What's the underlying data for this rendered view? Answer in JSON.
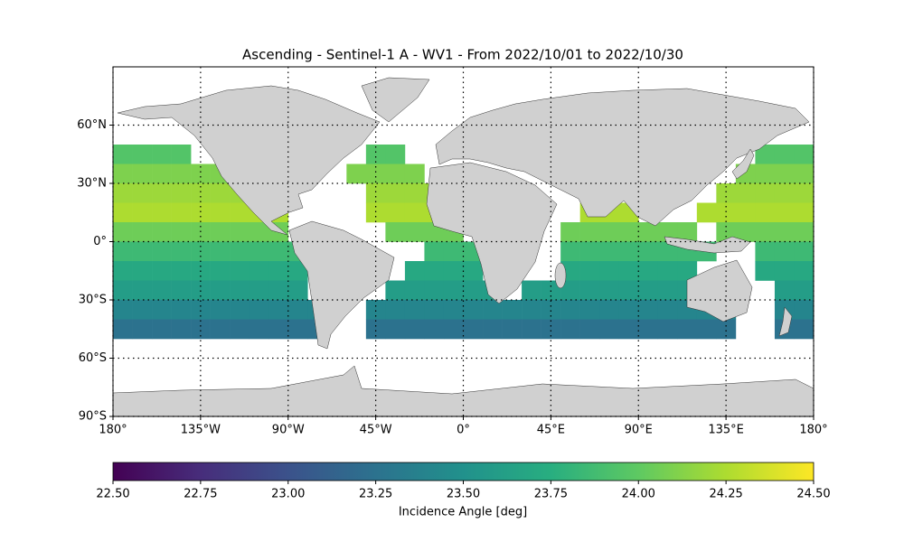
{
  "chart_data": {
    "type": "map",
    "title": "Ascending - Sentinel-1 A - WV1 - From 2022/10/01 to 2022/10/30",
    "xlim": [
      -180,
      180
    ],
    "ylim": [
      -90,
      90
    ],
    "xticks": [
      {
        "value": -180,
        "label": "180°"
      },
      {
        "value": -135,
        "label": "135°W"
      },
      {
        "value": -90,
        "label": "90°W"
      },
      {
        "value": -45,
        "label": "45°W"
      },
      {
        "value": 0,
        "label": "0°"
      },
      {
        "value": 45,
        "label": "45°E"
      },
      {
        "value": 90,
        "label": "90°E"
      },
      {
        "value": 135,
        "label": "135°E"
      },
      {
        "value": 180,
        "label": "180°"
      }
    ],
    "yticks": [
      {
        "value": -90,
        "label": "90°S"
      },
      {
        "value": -60,
        "label": "60°S"
      },
      {
        "value": -30,
        "label": "30°S"
      },
      {
        "value": 0,
        "label": "0°"
      },
      {
        "value": 30,
        "label": "30°N"
      },
      {
        "value": 60,
        "label": "60°N"
      }
    ],
    "grid": true,
    "cell_size": 10,
    "lats": [
      45,
      35,
      25,
      15,
      5,
      -5,
      -15,
      -25,
      -35,
      -45
    ],
    "lons": [
      -175,
      -165,
      -155,
      -145,
      -135,
      -125,
      -115,
      -105,
      -95,
      -85,
      -75,
      -65,
      -55,
      -45,
      -35,
      -25,
      -15,
      -5,
      5,
      15,
      25,
      35,
      45,
      55,
      65,
      75,
      85,
      95,
      105,
      115,
      125,
      135,
      145,
      155,
      165,
      175
    ],
    "values": [
      [
        23.95,
        23.95,
        23.95,
        23.95,
        null,
        null,
        null,
        null,
        null,
        null,
        null,
        null,
        null,
        23.95,
        23.95,
        null,
        null,
        null,
        null,
        null,
        null,
        null,
        null,
        null,
        null,
        null,
        null,
        null,
        null,
        null,
        null,
        null,
        null,
        23.95,
        23.95,
        23.95
      ],
      [
        24.1,
        24.1,
        24.1,
        24.1,
        24.1,
        24.1,
        null,
        null,
        null,
        null,
        null,
        null,
        24.1,
        24.1,
        24.1,
        24.1,
        null,
        null,
        null,
        null,
        null,
        null,
        null,
        null,
        null,
        null,
        null,
        null,
        null,
        null,
        null,
        null,
        24.1,
        24.1,
        24.1,
        24.1
      ],
      [
        24.2,
        24.2,
        24.2,
        24.2,
        24.2,
        24.2,
        24.2,
        null,
        null,
        null,
        null,
        null,
        null,
        24.2,
        24.2,
        24.2,
        24.2,
        null,
        null,
        null,
        null,
        null,
        null,
        null,
        null,
        null,
        null,
        null,
        null,
        null,
        null,
        24.2,
        24.2,
        24.2,
        24.2,
        24.2
      ],
      [
        24.25,
        24.25,
        24.25,
        24.25,
        24.25,
        24.25,
        24.25,
        24.25,
        24.25,
        null,
        null,
        null,
        null,
        24.25,
        24.25,
        24.25,
        24.25,
        null,
        null,
        null,
        null,
        null,
        null,
        null,
        24.25,
        24.25,
        24.25,
        null,
        null,
        null,
        24.25,
        24.25,
        24.25,
        24.25,
        24.25,
        24.25
      ],
      [
        24.05,
        24.05,
        24.05,
        24.05,
        24.05,
        24.05,
        24.05,
        24.05,
        24.05,
        null,
        null,
        null,
        null,
        null,
        24.05,
        24.05,
        24.05,
        24.05,
        null,
        null,
        null,
        null,
        null,
        24.05,
        24.05,
        24.05,
        24.05,
        24.05,
        24.05,
        24.05,
        null,
        24.05,
        24.05,
        24.05,
        24.05,
        24.05
      ],
      [
        23.85,
        23.85,
        23.85,
        23.85,
        23.85,
        23.85,
        23.85,
        23.85,
        23.85,
        23.85,
        null,
        null,
        null,
        null,
        null,
        null,
        23.85,
        23.85,
        23.85,
        null,
        null,
        null,
        null,
        23.85,
        23.85,
        23.85,
        23.85,
        23.85,
        23.85,
        23.85,
        23.85,
        null,
        null,
        23.85,
        23.85,
        23.85
      ],
      [
        23.7,
        23.7,
        23.7,
        23.7,
        23.7,
        23.7,
        23.7,
        23.7,
        23.7,
        23.7,
        null,
        null,
        null,
        null,
        null,
        23.7,
        23.7,
        23.7,
        23.7,
        null,
        null,
        null,
        null,
        23.7,
        23.7,
        23.7,
        23.7,
        23.7,
        23.7,
        23.7,
        null,
        null,
        null,
        23.7,
        23.7,
        23.7
      ],
      [
        23.6,
        23.6,
        23.6,
        23.6,
        23.6,
        23.6,
        23.6,
        23.6,
        23.6,
        23.6,
        null,
        null,
        null,
        null,
        23.6,
        23.6,
        23.6,
        23.6,
        23.6,
        23.6,
        null,
        23.6,
        23.6,
        23.6,
        23.6,
        23.6,
        23.6,
        23.6,
        23.6,
        23.6,
        null,
        null,
        null,
        null,
        23.6,
        23.6
      ],
      [
        23.4,
        23.4,
        23.4,
        23.4,
        23.4,
        23.4,
        23.4,
        23.4,
        23.4,
        23.4,
        23.4,
        null,
        null,
        23.4,
        23.4,
        23.4,
        23.4,
        23.4,
        23.4,
        23.4,
        23.4,
        23.4,
        23.4,
        23.4,
        23.4,
        23.4,
        23.4,
        23.4,
        23.4,
        23.4,
        23.4,
        23.4,
        null,
        null,
        23.4,
        23.4
      ],
      [
        23.25,
        23.25,
        23.25,
        23.25,
        23.25,
        23.25,
        23.25,
        23.25,
        23.25,
        23.25,
        23.25,
        null,
        null,
        23.25,
        23.25,
        23.25,
        23.25,
        23.25,
        23.25,
        23.25,
        23.25,
        23.25,
        23.25,
        23.25,
        23.25,
        23.25,
        23.25,
        23.25,
        23.25,
        23.25,
        23.25,
        23.25,
        null,
        null,
        23.25,
        23.25
      ]
    ],
    "colorbar": {
      "label": "Incidence Angle [deg]",
      "lim": [
        22.5,
        24.5
      ],
      "ticks": [
        {
          "value": 22.5,
          "label": "22.50"
        },
        {
          "value": 22.75,
          "label": "22.75"
        },
        {
          "value": 23,
          "label": "23.00"
        },
        {
          "value": 23.25,
          "label": "23.25"
        },
        {
          "value": 23.5,
          "label": "23.50"
        },
        {
          "value": 23.75,
          "label": "23.75"
        },
        {
          "value": 24,
          "label": "24.00"
        },
        {
          "value": 24.25,
          "label": "24.25"
        },
        {
          "value": 24.5,
          "label": "24.50"
        }
      ]
    }
  }
}
